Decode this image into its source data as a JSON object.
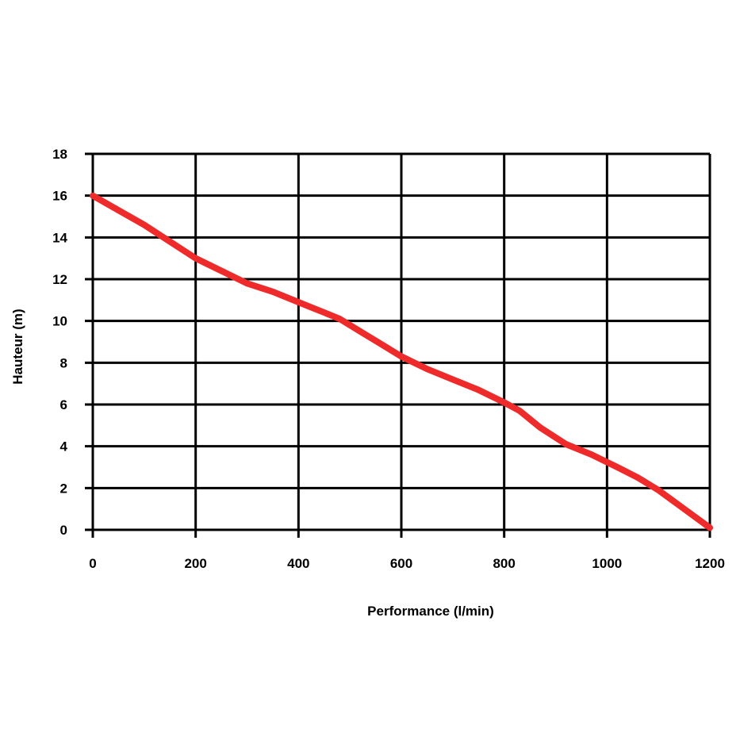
{
  "chart_data": {
    "type": "line",
    "title": "",
    "xlabel": "Performance (l/min)",
    "ylabel": "Hauteur (m)",
    "xlim": [
      0,
      1200
    ],
    "ylim": [
      0,
      18
    ],
    "x_ticks": [
      0,
      200,
      400,
      600,
      800,
      1000,
      1200
    ],
    "y_ticks": [
      0,
      2,
      4,
      6,
      8,
      10,
      12,
      14,
      16,
      18
    ],
    "grid": true,
    "series": [
      {
        "color": "#ee2a2a",
        "x": [
          0,
          50,
          100,
          150,
          200,
          250,
          300,
          350,
          400,
          450,
          480,
          520,
          560,
          600,
          650,
          700,
          750,
          800,
          830,
          870,
          920,
          970,
          1020,
          1060,
          1100,
          1150,
          1200
        ],
        "y": [
          16,
          15.3,
          14.6,
          13.8,
          13,
          12.4,
          11.8,
          11.4,
          10.9,
          10.4,
          10.1,
          9.5,
          8.9,
          8.3,
          7.7,
          7.2,
          6.7,
          6.1,
          5.7,
          4.9,
          4.1,
          3.6,
          3.0,
          2.5,
          1.9,
          1.0,
          0.1
        ]
      }
    ]
  }
}
